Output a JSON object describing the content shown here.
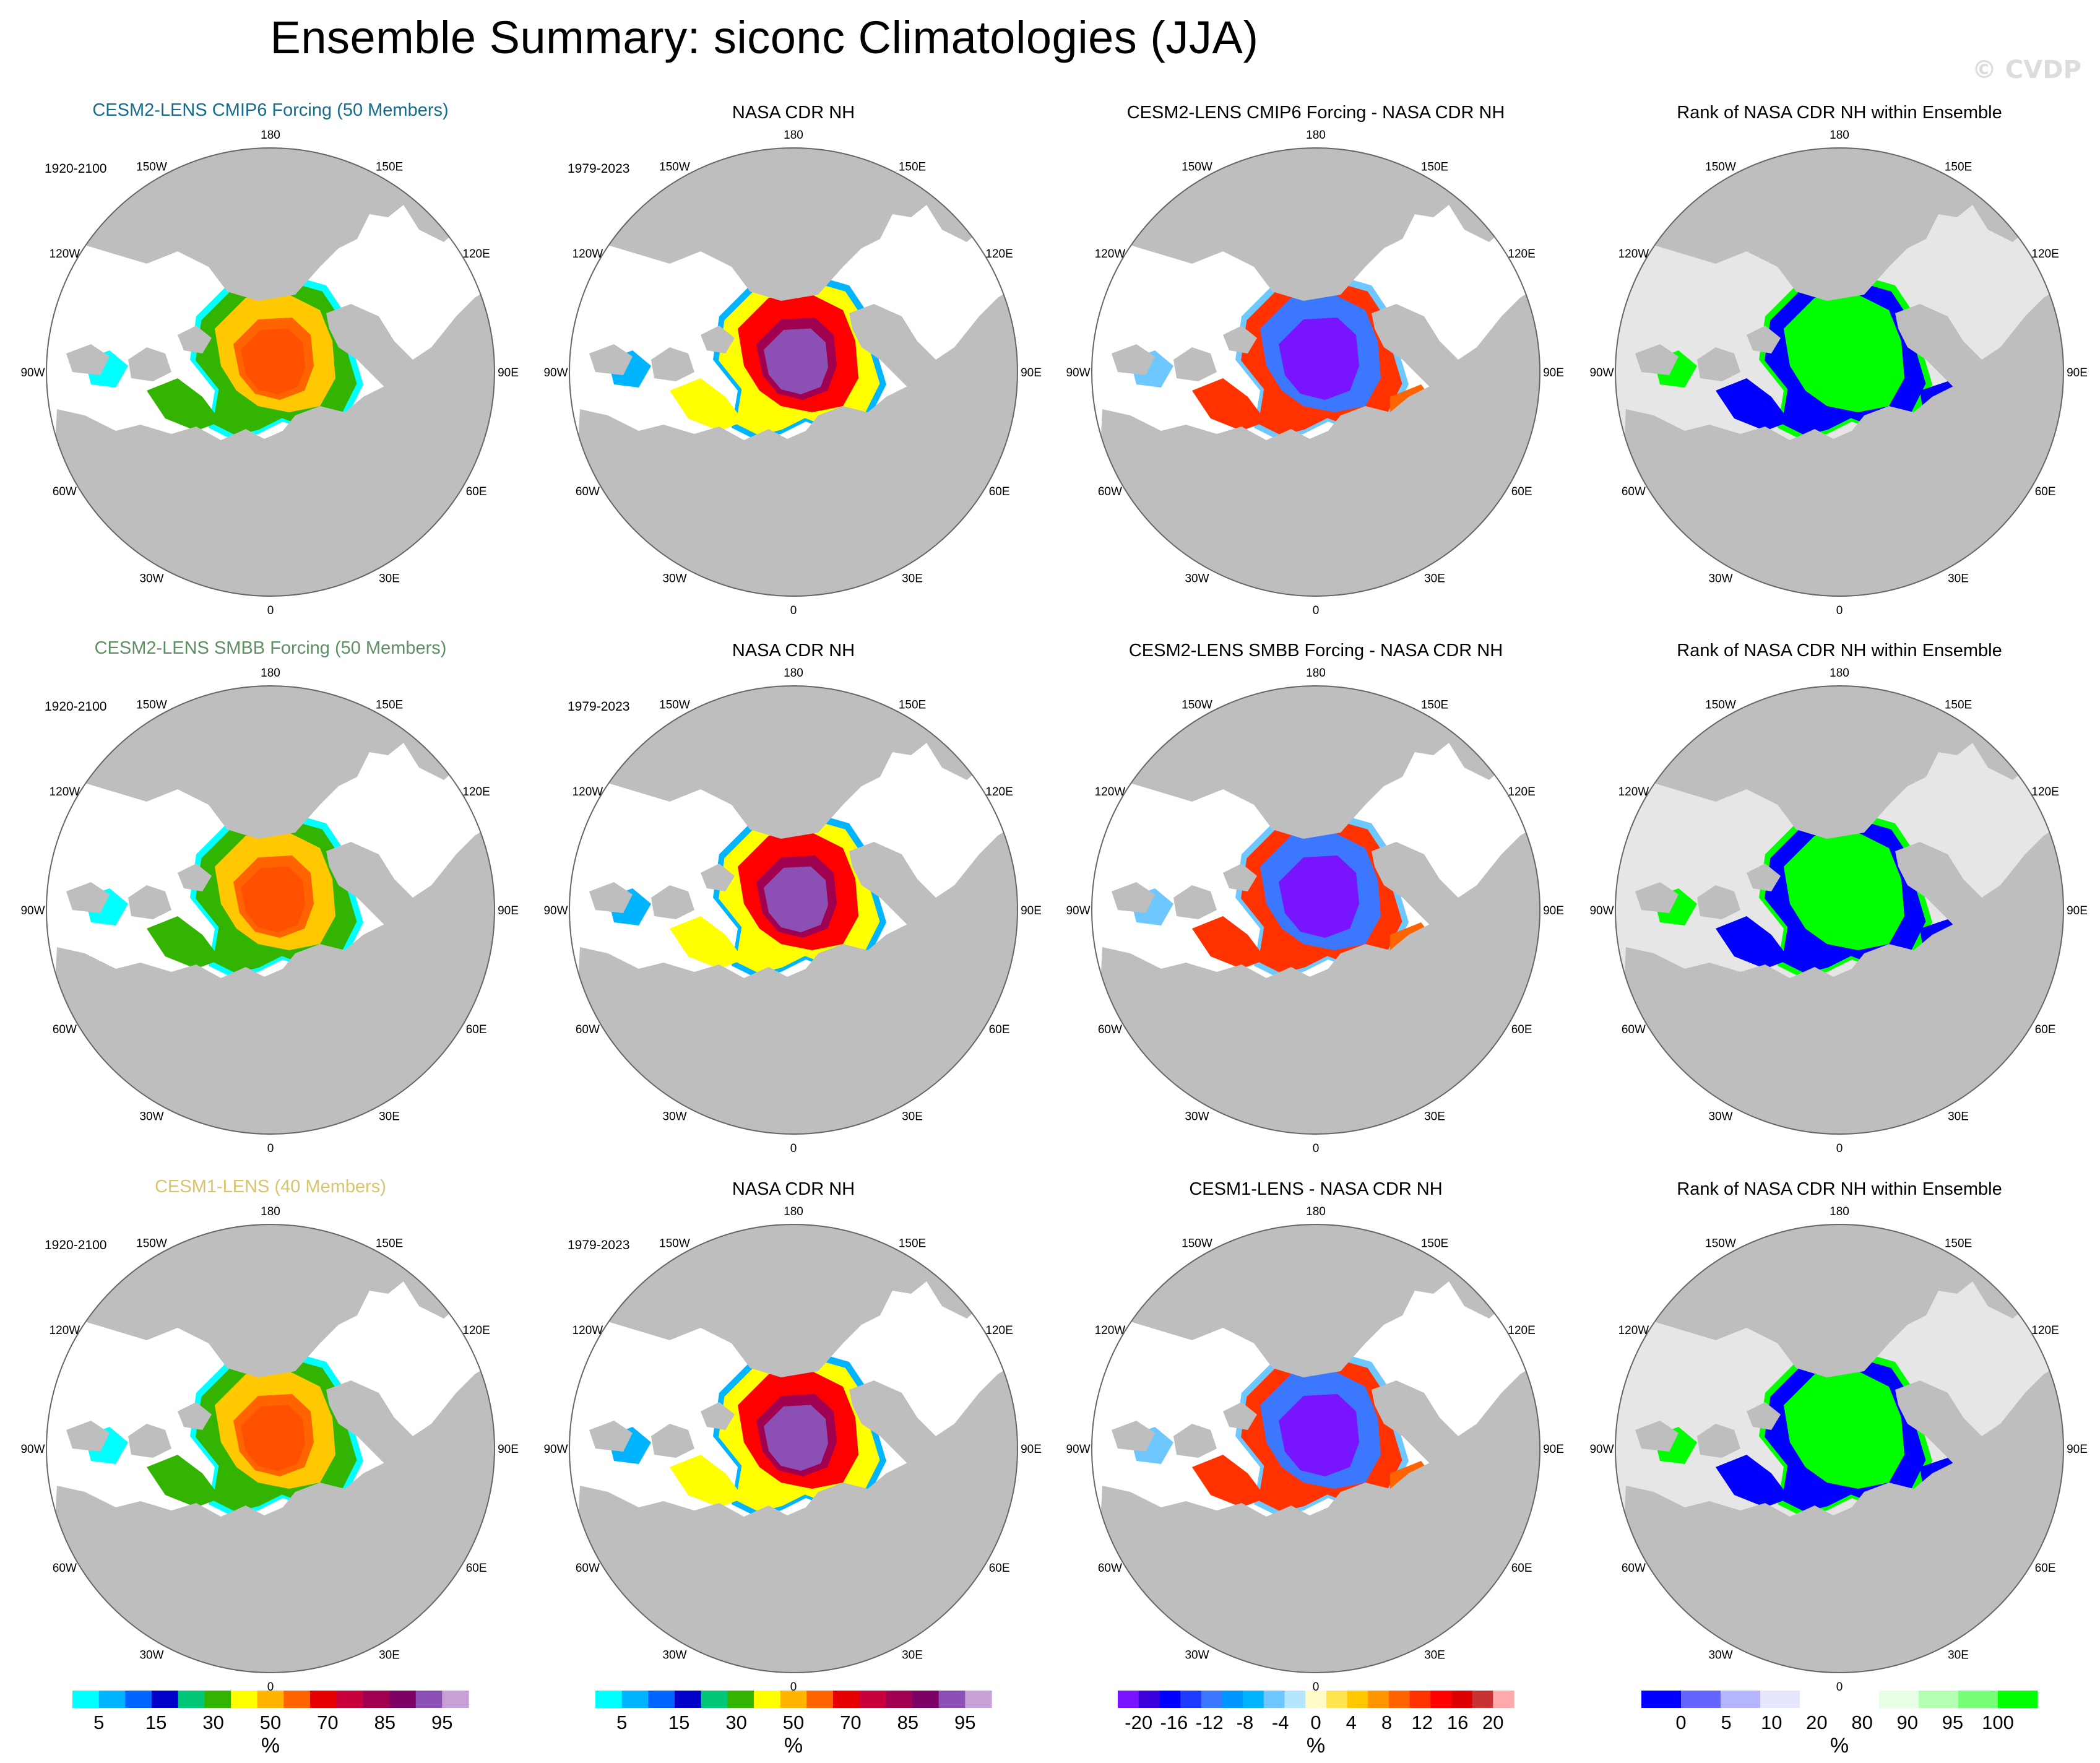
{
  "title": "Ensemble Summary: siconc Climatologies (JJA)",
  "watermark": "© CVDP",
  "colors": {
    "land": "#bebebe",
    "rank_background": "#e6e6e6",
    "row_titles": [
      "#156c8c",
      "#5f8f63",
      "#d8c46a"
    ]
  },
  "map_labels": {
    "longitudes": [
      "180",
      "150E",
      "120E",
      "90E",
      "60E",
      "30E",
      "0",
      "30W",
      "60W",
      "90W",
      "120W",
      "150W"
    ]
  },
  "rows": [
    {
      "model_title": "CESM2-LENS CMIP6 Forcing (50 Members)",
      "model_period": "1920-2100",
      "obs_title": "NASA CDR NH",
      "obs_period": "1979-2023",
      "diff_title": "CESM2-LENS CMIP6 Forcing - NASA CDR NH",
      "rank_title": "Rank of NASA CDR NH within Ensemble"
    },
    {
      "model_title": "CESM2-LENS SMBB Forcing (50 Members)",
      "model_period": "1920-2100",
      "obs_title": "NASA CDR NH",
      "obs_period": "1979-2023",
      "diff_title": "CESM2-LENS SMBB Forcing - NASA CDR NH",
      "rank_title": "Rank of NASA CDR NH within Ensemble"
    },
    {
      "model_title": "CESM1-LENS (40 Members)",
      "model_period": "1920-2100",
      "obs_title": "NASA CDR NH",
      "obs_period": "1979-2023",
      "diff_title": "CESM1-LENS - NASA CDR NH",
      "rank_title": "Rank of NASA CDR NH within Ensemble"
    }
  ],
  "colorbars": [
    {
      "name": "concentration",
      "units": "%",
      "tick_labels": [
        "5",
        "15",
        "30",
        "50",
        "70",
        "85",
        "95"
      ],
      "colors": [
        "#00ffff",
        "#00b4ff",
        "#0064ff",
        "#0000c8",
        "#00c878",
        "#32b400",
        "#ffff00",
        "#ffb400",
        "#ff6400",
        "#e60000",
        "#c8003c",
        "#a00050",
        "#7d0064",
        "#8c50b4",
        "#c8a0d8"
      ]
    },
    {
      "name": "concentration",
      "units": "%",
      "tick_labels": [
        "5",
        "15",
        "30",
        "50",
        "70",
        "85",
        "95"
      ],
      "colors": [
        "#00ffff",
        "#00b4ff",
        "#0064ff",
        "#0000c8",
        "#00c878",
        "#32b400",
        "#ffff00",
        "#ffb400",
        "#ff6400",
        "#e60000",
        "#c8003c",
        "#a00050",
        "#7d0064",
        "#8c50b4",
        "#c8a0d8"
      ]
    },
    {
      "name": "difference",
      "units": "%",
      "tick_labels": [
        "-20",
        "-16",
        "-12",
        "-8",
        "-4",
        "0",
        "4",
        "8",
        "12",
        "16",
        "20"
      ],
      "colors": [
        "#7814ff",
        "#3c00dc",
        "#0000ff",
        "#1e3cff",
        "#3c78ff",
        "#0096ff",
        "#00b4ff",
        "#6ec8ff",
        "#b4e6ff",
        "#fffac8",
        "#ffe650",
        "#ffc800",
        "#ff9600",
        "#ff6400",
        "#ff3200",
        "#ff0000",
        "#dc0000",
        "#c83232",
        "#ffaaaa"
      ]
    },
    {
      "name": "rank",
      "units": "%",
      "tick_labels": [
        "0",
        "5",
        "10",
        "20",
        "80",
        "90",
        "95",
        "100"
      ],
      "colors": [
        "#0000ff",
        "#6464ff",
        "#b4b4ff",
        "#e6e6ff",
        "#ffffff",
        "#ffffff",
        "#e6ffe6",
        "#b4ffb4",
        "#78ff78",
        "#00ff00"
      ]
    }
  ]
}
